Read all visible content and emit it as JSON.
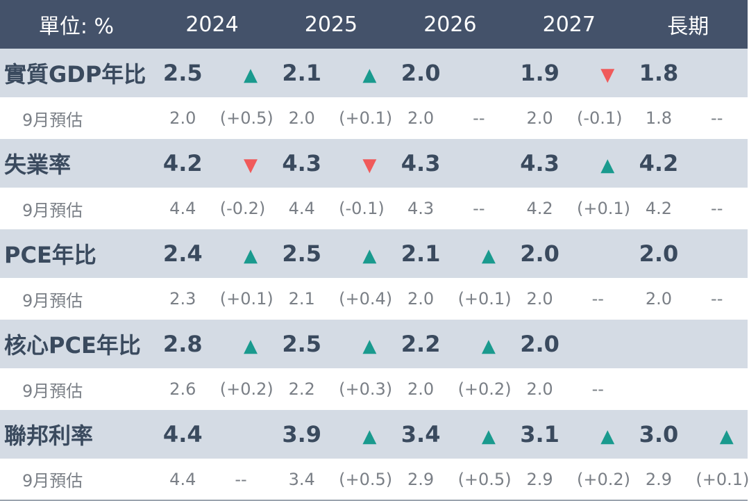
{
  "header": {
    "unit": "單位: %",
    "years": [
      "2024",
      "2025",
      "2026",
      "2027",
      "長期"
    ]
  },
  "colors": {
    "header_bg": "#44526a",
    "main_row_bg": "#d4dbe4",
    "up": "#1a9a8e",
    "down": "#f05a5a"
  },
  "rows": [
    {
      "label": "實質GDP年比",
      "values": [
        "2.5",
        "2.1",
        "2.0",
        "1.9",
        "1.8"
      ],
      "arrows": [
        "up",
        "up",
        "",
        "down",
        ""
      ],
      "sub_label": "9月預估",
      "sub_values": [
        "2.0",
        "2.0",
        "2.0",
        "2.0",
        "1.8"
      ],
      "sub_deltas": [
        "(+0.5)",
        "(+0.1)",
        "--",
        "(-0.1)",
        "--"
      ]
    },
    {
      "label": "失業率",
      "values": [
        "4.2",
        "4.3",
        "4.3",
        "4.3",
        "4.2"
      ],
      "arrows": [
        "down",
        "down",
        "",
        "up",
        ""
      ],
      "sub_label": "9月預估",
      "sub_values": [
        "4.4",
        "4.4",
        "4.3",
        "4.2",
        "4.2"
      ],
      "sub_deltas": [
        "(-0.2)",
        "(-0.1)",
        "--",
        "(+0.1)",
        "--"
      ]
    },
    {
      "label": "PCE年比",
      "values": [
        "2.4",
        "2.5",
        "2.1",
        "2.0",
        "2.0"
      ],
      "arrows": [
        "up",
        "up",
        "up",
        "",
        ""
      ],
      "sub_label": "9月預估",
      "sub_values": [
        "2.3",
        "2.1",
        "2.0",
        "2.0",
        "2.0"
      ],
      "sub_deltas": [
        "(+0.1)",
        "(+0.4)",
        "(+0.1)",
        "--",
        "--"
      ]
    },
    {
      "label": "核心PCE年比",
      "values": [
        "2.8",
        "2.5",
        "2.2",
        "2.0",
        ""
      ],
      "arrows": [
        "up",
        "up",
        "up",
        "",
        ""
      ],
      "sub_label": "9月預估",
      "sub_values": [
        "2.6",
        "2.2",
        "2.0",
        "2.0",
        ""
      ],
      "sub_deltas": [
        "(+0.2)",
        "(+0.3)",
        "(+0.2)",
        "--",
        ""
      ]
    },
    {
      "label": "聯邦利率",
      "values": [
        "4.4",
        "3.9",
        "3.4",
        "3.1",
        "3.0"
      ],
      "arrows": [
        "",
        "up",
        "up",
        "up",
        "up"
      ],
      "sub_label": "9月預估",
      "sub_values": [
        "4.4",
        "3.4",
        "2.9",
        "2.9",
        "2.9"
      ],
      "sub_deltas": [
        "--",
        "(+0.5)",
        "(+0.5)",
        "(+0.2)",
        "(+0.1)"
      ]
    }
  ]
}
